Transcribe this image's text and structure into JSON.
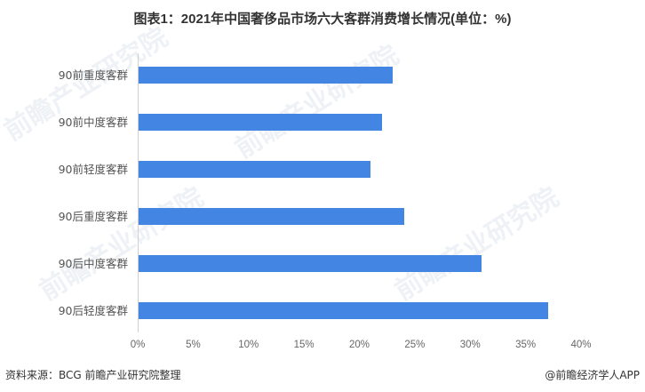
{
  "title": "图表1：2021年中国奢侈品市场六大客群消费增长情况(单位：%)",
  "watermark": "前瞻产业研究院",
  "footer": {
    "source": "资料来源：BCG 前瞻产业研究院整理",
    "credit": "@前瞻经济学人APP"
  },
  "colors": {
    "bar": "#4285e2",
    "axis": "#d0d0d0",
    "text": "#555555"
  },
  "chart_data": {
    "type": "bar",
    "orientation": "horizontal",
    "title": "图表1：2021年中国奢侈品市场六大客群消费增长情况(单位：%)",
    "categories": [
      "90前重度客群",
      "90前中度客群",
      "90前轻度客群",
      "90后重度客群",
      "90后中度客群",
      "90后轻度客群"
    ],
    "values": [
      23,
      22,
      21,
      24,
      31,
      37
    ],
    "xlabel": "",
    "ylabel": "",
    "xlim": [
      0,
      40
    ],
    "x_ticks": [
      "0%",
      "5%",
      "10%",
      "15%",
      "20%",
      "25%",
      "30%",
      "35%",
      "40%"
    ],
    "grid": false,
    "legend": "none",
    "unit": "%"
  }
}
